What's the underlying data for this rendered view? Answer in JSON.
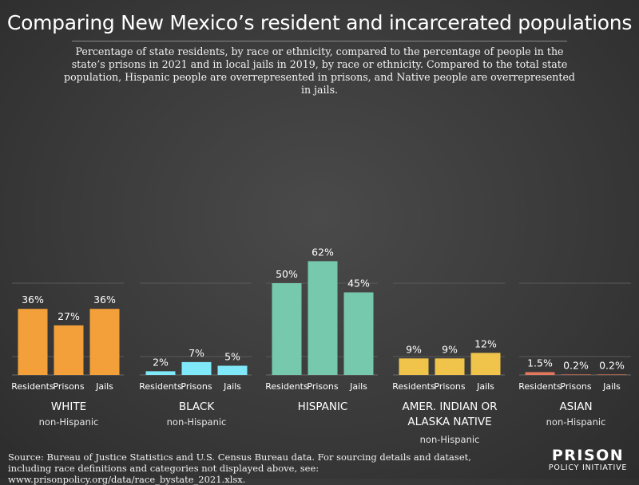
{
  "title": "Comparing New Mexico’s resident and incarcerated populations",
  "subtitle": "Percentage of state residents, by race or ethnicity, compared to the percentage of people in the state’s prisons in 2021 and in local jails in 2019, by race or ethnicity. Compared to the total state population, Hispanic people are overrepresented in prisons, and Native people are overrepresented in jails.",
  "source": "Source: Bureau of Justice Statistics and U.S. Census Bureau data. For sourcing details and dataset, including race definitions and categories not displayed above, see: www.prisonpolicy.org/data/race_bystate_2021.xlsx.",
  "logo": {
    "top": "PRISON",
    "bottom": "POLICY INITIATIVE"
  },
  "chart_data": {
    "type": "bar",
    "title": "Comparing New Mexico’s resident and incarcerated populations",
    "ylim": [
      0,
      70
    ],
    "grid": true,
    "bar_categories": [
      "Residents",
      "Prisons",
      "Jails"
    ],
    "groups": [
      {
        "name": "WHITE",
        "name_lines": [
          "WHITE"
        ],
        "sub": "non-Hispanic",
        "color": "#f3a03a",
        "values": [
          36,
          27,
          36
        ],
        "labels": [
          "36%",
          "27%",
          "36%"
        ]
      },
      {
        "name": "BLACK",
        "name_lines": [
          "BLACK"
        ],
        "sub": "non-Hispanic",
        "color": "#7fe8f9",
        "values": [
          2,
          7,
          5
        ],
        "labels": [
          "2%",
          "7%",
          "5%"
        ]
      },
      {
        "name": "HISPANIC",
        "name_lines": [
          "HISPANIC"
        ],
        "sub": "",
        "color": "#76c9ad",
        "values": [
          50,
          62,
          45
        ],
        "labels": [
          "50%",
          "62%",
          "45%"
        ]
      },
      {
        "name": "AMER. INDIAN OR ALASKA NATIVE",
        "name_lines": [
          "AMER. INDIAN OR",
          "ALASKA NATIVE"
        ],
        "sub": "non-Hispanic",
        "color": "#f0c44a",
        "values": [
          9,
          9,
          12
        ],
        "labels": [
          "9%",
          "9%",
          "12%"
        ]
      },
      {
        "name": "ASIAN",
        "name_lines": [
          "ASIAN"
        ],
        "sub": "non-Hispanic",
        "color": "#e5785a",
        "values": [
          1.5,
          0.2,
          0.2
        ],
        "labels": [
          "1.5%",
          "0.2%",
          "0.2%"
        ]
      }
    ]
  }
}
